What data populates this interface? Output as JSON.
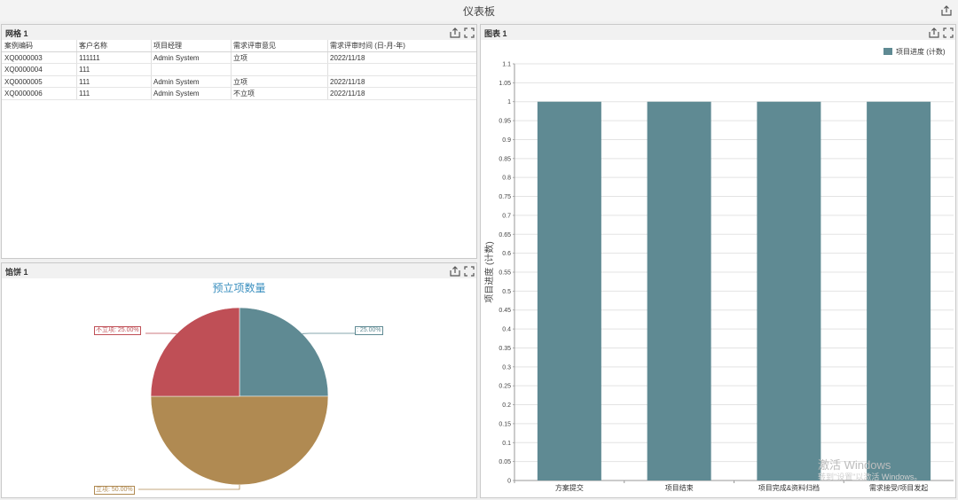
{
  "page": {
    "title": "仪表板"
  },
  "grid_panel": {
    "title": "网格 1",
    "columns": [
      "案例编码",
      "客户名称",
      "项目经理",
      "需求评审意见",
      "需求评审时间 (日-月-年)"
    ],
    "rows": [
      [
        "XQ0000003",
        "111111",
        "Admin System",
        "立项",
        "2022/11/18"
      ],
      [
        "XQ0000004",
        "111",
        "",
        "",
        ""
      ],
      [
        "XQ0000005",
        "111",
        "Admin System",
        "立项",
        "2022/11/18"
      ],
      [
        "XQ0000006",
        "111",
        "Admin System",
        "不立项",
        "2022/11/18"
      ]
    ]
  },
  "pie_panel": {
    "title": "馅饼 1"
  },
  "bar_panel": {
    "title": "图表 1"
  },
  "chart_data": [
    {
      "type": "pie",
      "title": "预立项数量",
      "slices": [
        {
          "label": "",
          "value": 25.0,
          "display": ": 25.00%",
          "color": "#5f8a93"
        },
        {
          "label": "立项",
          "value": 50.0,
          "display": "立项: 50.00%",
          "color": "#b08a52"
        },
        {
          "label": "不立项",
          "value": 25.0,
          "display": "不立项: 25.00%",
          "color": "#bf4f56"
        }
      ]
    },
    {
      "type": "bar",
      "categories": [
        "方案提交",
        "项目结束",
        "项目完成&资料归档",
        "需求接受/项目发起"
      ],
      "series": [
        {
          "name": "项目进度 (计数)",
          "values": [
            1,
            1,
            1,
            1
          ],
          "color": "#5f8a93"
        }
      ],
      "ylabel": "项目进度 (计数)",
      "ylim": [
        0,
        1.1
      ],
      "yticks": [
        "0",
        "0.05",
        "0.1",
        "0.15",
        "0.2",
        "0.25",
        "0.3",
        "0.35",
        "0.4",
        "0.45",
        "0.5",
        "0.55",
        "0.6",
        "0.65",
        "0.7",
        "0.75",
        "0.8",
        "0.85",
        "0.9",
        "0.95",
        "1",
        "1.05",
        "1.1"
      ],
      "grid": true,
      "legend": "top-right"
    }
  ],
  "watermark": {
    "line1": "激活 Windows",
    "line2": "转到\"设置\"以激活 Windows。"
  },
  "icons": {
    "export": "export-icon",
    "maximize": "maximize-icon"
  }
}
